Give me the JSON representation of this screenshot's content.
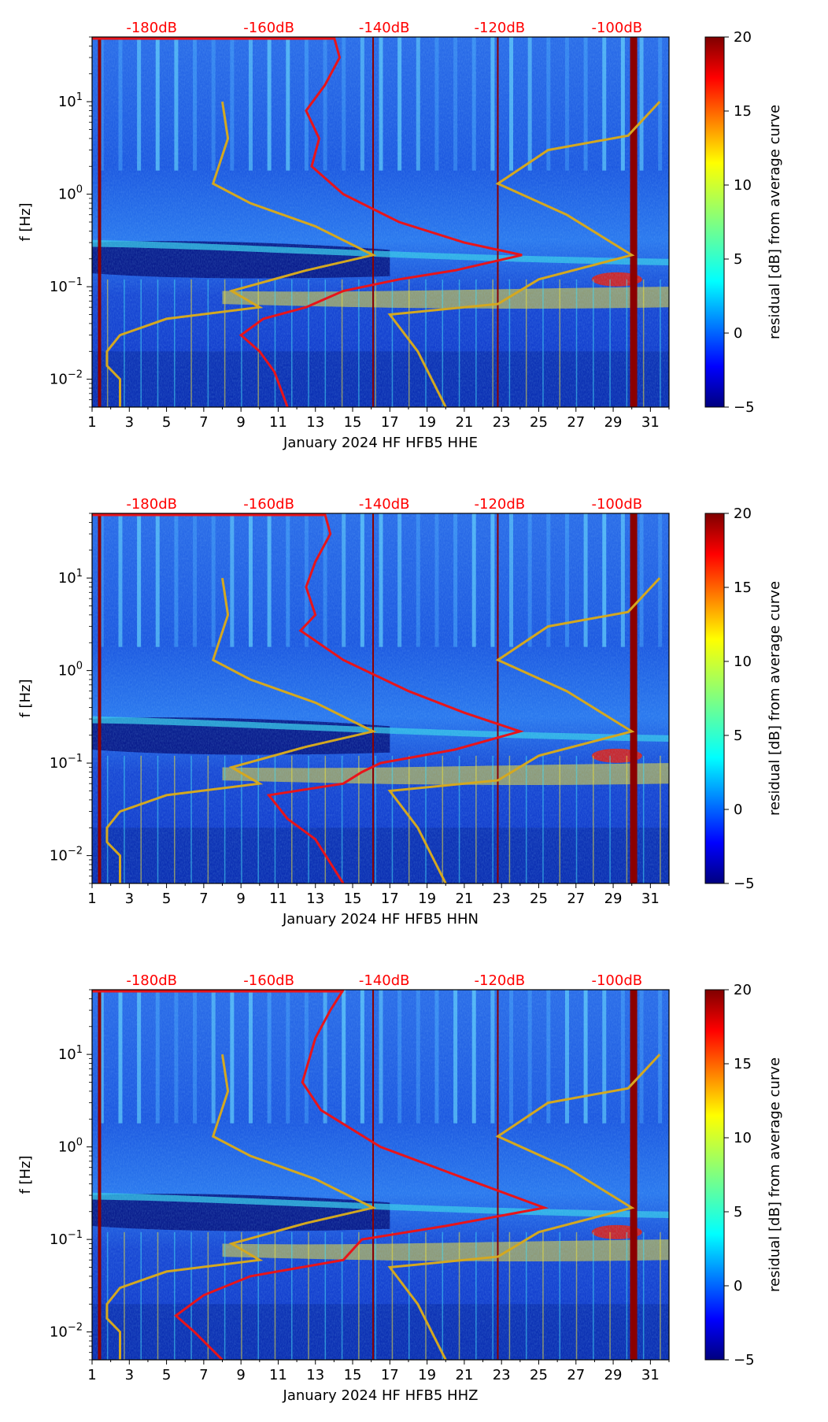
{
  "chart_data": [
    {
      "type": "heatmap",
      "component": "HHE",
      "xlabel": "January 2024 HF HFB5  HHE",
      "ylabel": "f [Hz]",
      "colorbar_label": "residual [dB] from average curve",
      "xlim": [
        1,
        32
      ],
      "x_ticks": [
        1,
        3,
        5,
        7,
        9,
        11,
        13,
        15,
        17,
        19,
        21,
        23,
        25,
        27,
        29,
        31
      ],
      "ylim": [
        0.005,
        50
      ],
      "y_scale": "log",
      "y_ticks": [
        {
          "value": 0.01,
          "label": "10^-2"
        },
        {
          "value": 0.1,
          "label": "10^-1"
        },
        {
          "value": 1,
          "label": "10^0"
        },
        {
          "value": 10,
          "label": "10^1"
        }
      ],
      "colorbar_range": [
        -5,
        20
      ],
      "colorbar_ticks": [
        "20",
        "15",
        "10",
        "5",
        "0",
        "−5"
      ],
      "db_axis_labels": [
        "-180dB",
        "-160dB",
        "-140dB",
        "-120dB",
        "-100dB"
      ],
      "db_axis_positions": [
        4.2,
        10.5,
        16.7,
        22.9,
        29.2
      ],
      "red_colored_days": [
        1.4,
        16.1,
        22.8,
        30.1
      ],
      "average_curve_red": [
        [
          14.0,
          50
        ],
        [
          14.3,
          30
        ],
        [
          13.5,
          15
        ],
        [
          12.5,
          8
        ],
        [
          13.2,
          4
        ],
        [
          12.8,
          2
        ],
        [
          14.5,
          1
        ],
        [
          17.5,
          0.5
        ],
        [
          21.0,
          0.3
        ],
        [
          24.1,
          0.22
        ],
        [
          20.5,
          0.15
        ],
        [
          17.5,
          0.12
        ],
        [
          14.5,
          0.09
        ],
        [
          12.5,
          0.06
        ],
        [
          10.2,
          0.045
        ],
        [
          9.0,
          0.03
        ],
        [
          10.0,
          0.02
        ],
        [
          10.8,
          0.012
        ],
        [
          11.5,
          0.005
        ]
      ],
      "nlnm_curve_gold": [
        [
          8.0,
          10
        ],
        [
          8.3,
          4
        ],
        [
          7.5,
          1.3
        ],
        [
          9.5,
          0.8
        ],
        [
          13.0,
          0.45
        ],
        [
          16.1,
          0.22
        ],
        [
          12.5,
          0.15
        ],
        [
          8.5,
          0.09
        ],
        [
          10.0,
          0.06
        ],
        [
          5.0,
          0.045
        ],
        [
          2.5,
          0.03
        ],
        [
          1.8,
          0.02
        ],
        [
          1.8,
          0.014
        ],
        [
          2.5,
          0.01
        ],
        [
          2.5,
          0.005
        ]
      ],
      "nhnm_curve_gold": [
        [
          31.5,
          10
        ],
        [
          29.8,
          4.3
        ],
        [
          25.5,
          3
        ],
        [
          22.8,
          1.3
        ],
        [
          26.5,
          0.6
        ],
        [
          30.0,
          0.22
        ],
        [
          25.0,
          0.12
        ],
        [
          22.8,
          0.065
        ],
        [
          17.0,
          0.05
        ],
        [
          18.5,
          0.02
        ],
        [
          20.0,
          0.005
        ]
      ]
    },
    {
      "type": "heatmap",
      "component": "HHN",
      "xlabel": "January 2024 HF HFB5  HHN",
      "ylabel": "f [Hz]",
      "colorbar_label": "residual [dB] from average curve",
      "xlim": [
        1,
        32
      ],
      "x_ticks": [
        1,
        3,
        5,
        7,
        9,
        11,
        13,
        15,
        17,
        19,
        21,
        23,
        25,
        27,
        29,
        31
      ],
      "ylim": [
        0.005,
        50
      ],
      "y_scale": "log",
      "y_ticks": [
        {
          "value": 0.01,
          "label": "10^-2"
        },
        {
          "value": 0.1,
          "label": "10^-1"
        },
        {
          "value": 1,
          "label": "10^0"
        },
        {
          "value": 10,
          "label": "10^1"
        }
      ],
      "colorbar_range": [
        -5,
        20
      ],
      "colorbar_ticks": [
        "20",
        "15",
        "10",
        "5",
        "0",
        "−5"
      ],
      "db_axis_labels": [
        "-180dB",
        "-160dB",
        "-140dB",
        "-120dB",
        "-100dB"
      ],
      "db_axis_positions": [
        4.2,
        10.5,
        16.7,
        22.9,
        29.2
      ],
      "red_colored_days": [
        1.4,
        16.1,
        22.8,
        30.1
      ],
      "average_curve_red": [
        [
          13.5,
          50
        ],
        [
          13.8,
          30
        ],
        [
          13.0,
          15
        ],
        [
          12.5,
          8
        ],
        [
          13.0,
          4
        ],
        [
          12.2,
          2.7
        ],
        [
          14.5,
          1.3
        ],
        [
          18.0,
          0.6
        ],
        [
          21.0,
          0.35
        ],
        [
          24.0,
          0.22
        ],
        [
          20.5,
          0.14
        ],
        [
          16.5,
          0.1
        ],
        [
          15.5,
          0.08
        ],
        [
          14.5,
          0.06
        ],
        [
          10.5,
          0.045
        ],
        [
          11.5,
          0.025
        ],
        [
          13.0,
          0.015
        ],
        [
          14.5,
          0.005
        ]
      ],
      "nlnm_curve_gold": [
        [
          8.0,
          10
        ],
        [
          8.3,
          4
        ],
        [
          7.5,
          1.3
        ],
        [
          9.5,
          0.8
        ],
        [
          13.0,
          0.45
        ],
        [
          16.1,
          0.22
        ],
        [
          12.5,
          0.15
        ],
        [
          8.5,
          0.09
        ],
        [
          10.0,
          0.06
        ],
        [
          5.0,
          0.045
        ],
        [
          2.5,
          0.03
        ],
        [
          1.8,
          0.02
        ],
        [
          1.8,
          0.014
        ],
        [
          2.5,
          0.01
        ],
        [
          2.5,
          0.005
        ]
      ],
      "nhnm_curve_gold": [
        [
          31.5,
          10
        ],
        [
          29.8,
          4.3
        ],
        [
          25.5,
          3
        ],
        [
          22.8,
          1.3
        ],
        [
          26.5,
          0.6
        ],
        [
          30.0,
          0.22
        ],
        [
          25.0,
          0.12
        ],
        [
          22.8,
          0.065
        ],
        [
          17.0,
          0.05
        ],
        [
          18.5,
          0.02
        ],
        [
          20.0,
          0.005
        ]
      ]
    },
    {
      "type": "heatmap",
      "component": "HHZ",
      "xlabel": "January 2024 HF HFB5  HHZ",
      "ylabel": "f [Hz]",
      "colorbar_label": "residual [dB] from average curve",
      "xlim": [
        1,
        32
      ],
      "x_ticks": [
        1,
        3,
        5,
        7,
        9,
        11,
        13,
        15,
        17,
        19,
        21,
        23,
        25,
        27,
        29,
        31
      ],
      "ylim": [
        0.005,
        50
      ],
      "y_scale": "log",
      "y_ticks": [
        {
          "value": 0.01,
          "label": "10^-2"
        },
        {
          "value": 0.1,
          "label": "10^-1"
        },
        {
          "value": 1,
          "label": "10^0"
        },
        {
          "value": 10,
          "label": "10^1"
        }
      ],
      "colorbar_range": [
        -5,
        20
      ],
      "colorbar_ticks": [
        "20",
        "15",
        "10",
        "5",
        "0",
        "−5"
      ],
      "db_axis_labels": [
        "-180dB",
        "-160dB",
        "-140dB",
        "-120dB",
        "-100dB"
      ],
      "db_axis_positions": [
        4.2,
        10.5,
        16.7,
        22.9,
        29.2
      ],
      "red_colored_days": [
        1.4,
        16.1,
        22.8,
        30.1
      ],
      "average_curve_red": [
        [
          14.5,
          50
        ],
        [
          13.8,
          30
        ],
        [
          13.0,
          15
        ],
        [
          12.3,
          5
        ],
        [
          13.3,
          2.5
        ],
        [
          16.5,
          1
        ],
        [
          20.5,
          0.5
        ],
        [
          25.3,
          0.22
        ],
        [
          20.0,
          0.14
        ],
        [
          15.5,
          0.1
        ],
        [
          14.5,
          0.06
        ],
        [
          9.5,
          0.04
        ],
        [
          7.0,
          0.025
        ],
        [
          5.5,
          0.015
        ],
        [
          6.5,
          0.01
        ],
        [
          8.0,
          0.005
        ]
      ],
      "nlnm_curve_gold": [
        [
          8.0,
          10
        ],
        [
          8.3,
          4
        ],
        [
          7.5,
          1.3
        ],
        [
          9.5,
          0.8
        ],
        [
          13.0,
          0.45
        ],
        [
          16.1,
          0.22
        ],
        [
          12.5,
          0.15
        ],
        [
          8.5,
          0.09
        ],
        [
          10.0,
          0.06
        ],
        [
          5.0,
          0.045
        ],
        [
          2.5,
          0.03
        ],
        [
          1.8,
          0.02
        ],
        [
          1.8,
          0.014
        ],
        [
          2.5,
          0.01
        ],
        [
          2.5,
          0.005
        ]
      ],
      "nhnm_curve_gold": [
        [
          31.5,
          10
        ],
        [
          29.8,
          4.3
        ],
        [
          25.5,
          3
        ],
        [
          22.8,
          1.3
        ],
        [
          26.5,
          0.6
        ],
        [
          30.0,
          0.22
        ],
        [
          25.0,
          0.12
        ],
        [
          22.8,
          0.065
        ],
        [
          17.0,
          0.05
        ],
        [
          18.5,
          0.02
        ],
        [
          20.0,
          0.005
        ]
      ]
    }
  ],
  "colors": {
    "average_curve": "#e8141a",
    "noise_model_curves": "#d4a820",
    "db_labels": "#ff0000",
    "background_field": "#1a4fd8",
    "dark_band": "#06127e",
    "hot_band": "#f0e030"
  }
}
